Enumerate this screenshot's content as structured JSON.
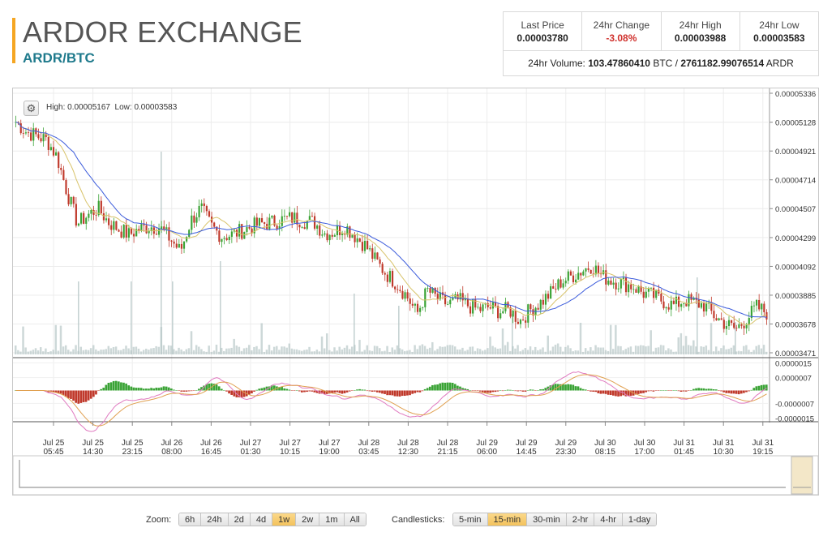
{
  "header": {
    "title": "ARDOR EXCHANGE",
    "pair": "ARDR/BTC"
  },
  "stats": {
    "last_price_label": "Last Price",
    "last_price": "0.00003780",
    "change_label": "24hr Change",
    "change": "-3.08%",
    "high_label": "24hr High",
    "high": "0.00003988",
    "low_label": "24hr Low",
    "low": "0.00003583",
    "volume_prefix": "24hr Volume:",
    "volume_btc": "103.47860410",
    "volume_btc_unit": "BTC /",
    "volume_ardr": "2761182.99076514",
    "volume_ardr_unit": "ARDR"
  },
  "chart_header": {
    "high_label": "High:",
    "high": "0.00005167",
    "low_label": "Low:",
    "low": "0.00003583"
  },
  "colors": {
    "accent": "#f5a623",
    "pair": "#1f7a8c",
    "down": "#d0312d",
    "candle_up": "#3aa335",
    "candle_down": "#c0392b",
    "ma_fast": "#d8c36a",
    "ma_slow": "#3b5bdb",
    "volume": "#b8c8c8"
  },
  "chart_data": {
    "type": "candlestick",
    "price_ticks": [
      "0.00005336",
      "0.00005128",
      "0.00004921",
      "0.00004714",
      "0.00004507",
      "0.00004299",
      "0.00004092",
      "0.00003885",
      "0.00003678",
      "0.00003471"
    ],
    "price_range": [
      3.471e-05,
      5.336e-05
    ],
    "macd_ticks": [
      "0.0000015",
      "0.0000007",
      "-0.0000007",
      "-0.0000015"
    ],
    "macd_range": [
      -1.7e-06,
      1.7e-06
    ],
    "x_labels": [
      [
        "Jul 25",
        "05:45"
      ],
      [
        "Jul 25",
        "14:30"
      ],
      [
        "Jul 25",
        "23:15"
      ],
      [
        "Jul 26",
        "08:00"
      ],
      [
        "Jul 26",
        "16:45"
      ],
      [
        "Jul 27",
        "01:30"
      ],
      [
        "Jul 27",
        "10:15"
      ],
      [
        "Jul 27",
        "19:00"
      ],
      [
        "Jul 28",
        "03:45"
      ],
      [
        "Jul 28",
        "12:30"
      ],
      [
        "Jul 28",
        "21:15"
      ],
      [
        "Jul 29",
        "06:00"
      ],
      [
        "Jul 29",
        "14:45"
      ],
      [
        "Jul 29",
        "23:30"
      ],
      [
        "Jul 30",
        "08:15"
      ],
      [
        "Jul 30",
        "17:00"
      ],
      [
        "Jul 31",
        "01:45"
      ],
      [
        "Jul 31",
        "10:30"
      ],
      [
        "Jul 31",
        "19:15"
      ]
    ],
    "price_path": [
      5.13e-05,
      5.06e-05,
      5.03e-05,
      5e-05,
      4.88e-05,
      4.62e-05,
      4.4e-05,
      4.46e-05,
      4.51e-05,
      4.41e-05,
      4.36e-05,
      4.32e-05,
      4.36e-05,
      4.38e-05,
      4.37e-05,
      4.29e-05,
      4.2e-05,
      4.42e-05,
      4.51e-05,
      4.38e-05,
      4.31e-05,
      4.32e-05,
      4.35e-05,
      4.38e-05,
      4.4e-05,
      4.41e-05,
      4.43e-05,
      4.44e-05,
      4.42e-05,
      4.41e-05,
      4.33e-05,
      4.34e-05,
      4.38e-05,
      4.31e-05,
      4.24e-05,
      4.13e-05,
      4.04e-05,
      3.97e-05,
      3.88e-05,
      3.75e-05,
      3.92e-05,
      3.86e-05,
      3.82e-05,
      3.85e-05,
      3.81e-05,
      3.78e-05,
      3.8e-05,
      3.77e-05,
      3.78e-05,
      3.7e-05,
      3.78e-05,
      3.83e-05,
      3.9e-05,
      3.98e-05,
      4.02e-05,
      4.06e-05,
      4.1e-05,
      4.02e-05,
      3.99e-05,
      3.97e-05,
      3.95e-05,
      3.9e-05,
      3.88e-05,
      3.84e-05,
      3.81e-05,
      3.85e-05,
      3.83e-05,
      3.81e-05,
      3.73e-05,
      3.68e-05,
      3.64e-05,
      3.71e-05,
      3.8e-05,
      3.76e-05
    ],
    "volume_spikes": [
      [
        0.32,
        0.45
      ],
      [
        0.23,
        0.35
      ],
      [
        0.33,
        0.55
      ],
      [
        0.28,
        0.95
      ],
      [
        0.2,
        0.4
      ],
      [
        0.26,
        0.42
      ],
      [
        0.16,
        0.35
      ],
      [
        0.12,
        0.3
      ]
    ]
  },
  "zoom": {
    "label": "Zoom:",
    "options": [
      "6h",
      "24h",
      "2d",
      "4d",
      "1w",
      "2w",
      "1m",
      "All"
    ],
    "active": "1w"
  },
  "candles": {
    "label": "Candlesticks:",
    "options": [
      "5-min",
      "15-min",
      "30-min",
      "2-hr",
      "4-hr",
      "1-day"
    ],
    "active": "15-min"
  }
}
